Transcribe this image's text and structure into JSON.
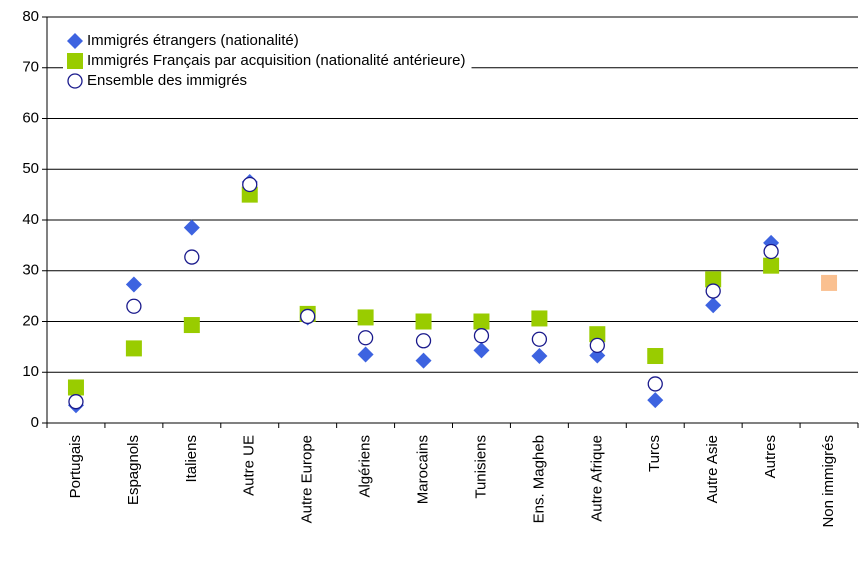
{
  "chart_data": {
    "type": "scatter",
    "categories": [
      "Portugais",
      "Espagnols",
      "Italiens",
      "Autre UE",
      "Autre Europe",
      "Algériens",
      "Marocains",
      "Tunisiens",
      "Ens. Magheb",
      "Autre Afrique",
      "Turcs",
      "Autre Asie",
      "Autres",
      "Non immigrés"
    ],
    "series": [
      {
        "name": "Immigrés étrangers (nationalité)",
        "color": "#3d63e0",
        "marker": "diamond",
        "values": [
          3.5,
          27.3,
          38.5,
          47.5,
          20.8,
          13.5,
          12.3,
          14.3,
          13.2,
          13.3,
          4.5,
          23.2,
          35.5,
          null
        ]
      },
      {
        "name": "Immigrés Français par acquisition (nationalité antérieure)",
        "color": "#99cc00",
        "marker": "square",
        "values": [
          7.0,
          14.7,
          19.3,
          45.0,
          21.5,
          20.8,
          20.0,
          20.0,
          20.6,
          17.5,
          13.2,
          28.3,
          31.0,
          null
        ]
      },
      {
        "name": "Ensemble des immigrés",
        "color": "#1a1a8c",
        "marker": "circle",
        "values": [
          4.2,
          23.0,
          32.7,
          47.0,
          21.0,
          16.8,
          16.2,
          17.2,
          16.5,
          15.3,
          7.7,
          26.0,
          33.8,
          null
        ]
      },
      {
        "color": "#fac090",
        "marker": "square",
        "values": [
          null,
          null,
          null,
          null,
          null,
          null,
          null,
          null,
          null,
          null,
          null,
          null,
          null,
          27.6
        ]
      }
    ],
    "ylim": [
      0,
      80
    ],
    "yticks": [
      0,
      10,
      20,
      30,
      40,
      50,
      60,
      70,
      80
    ],
    "grid": true,
    "legend": "top-left"
  }
}
